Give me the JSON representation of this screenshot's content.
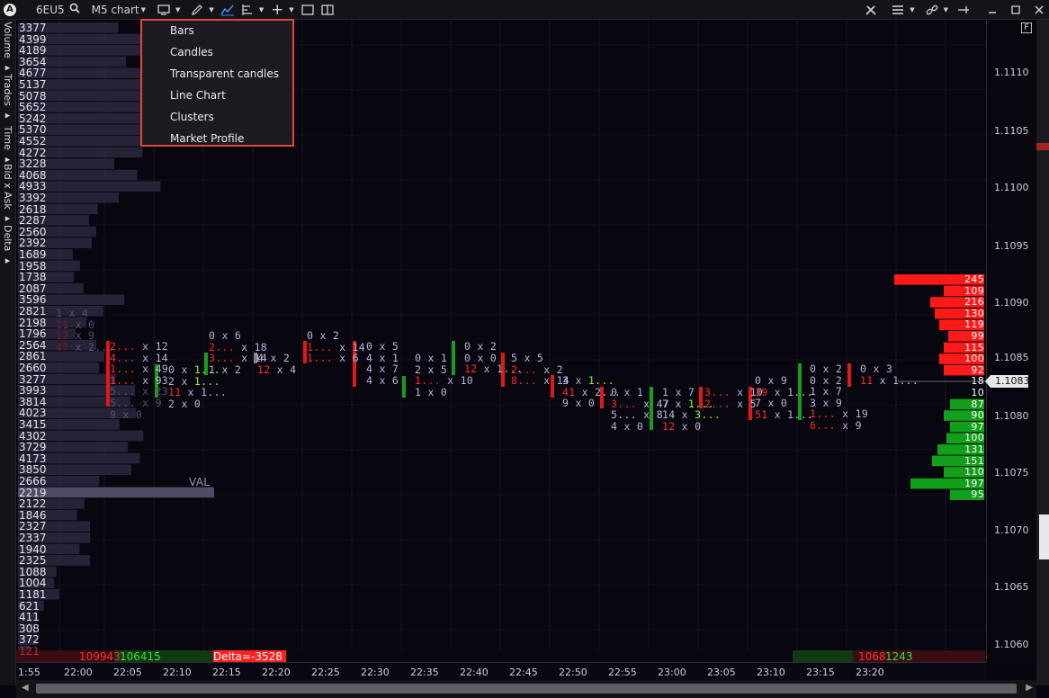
{
  "toolbar": {
    "symbol": "6EU5",
    "timeframe": "M5 chart"
  },
  "chart_type_menu": {
    "items": [
      "Bars",
      "Candles",
      "Transparent candles",
      "Line Chart",
      "Clusters",
      "Market Profile"
    ]
  },
  "side_tabs": [
    "Volume",
    "Trades",
    "Time",
    "Bid x Ask",
    "Delta"
  ],
  "volume_profile": {
    "labels": [
      "3377",
      "4399",
      "4189",
      "3654",
      "4677",
      "5137",
      "5078",
      "5652",
      "5242",
      "5370",
      "4552",
      "4272",
      "3228",
      "4068",
      "4933",
      "3392",
      "2618",
      "2287",
      "2560",
      "2392",
      "1689",
      "1958",
      "1738",
      "2087",
      "3596",
      "2821",
      "2198",
      "1796",
      "2564",
      "2861",
      "2660",
      "3277",
      "3993",
      "3814",
      "4023",
      "3415",
      "4302",
      "3729",
      "4173",
      "3850",
      "2666",
      "2219",
      "2122",
      "1846",
      "2327",
      "2337",
      "1940",
      "2325",
      "1088",
      "1004",
      "1181",
      "621",
      "411",
      "308",
      "372",
      "121"
    ],
    "val_label": "VAL"
  },
  "price_axis": {
    "labels": [
      "1.1110",
      "1.1105",
      "1.1100",
      "1.1095",
      "1.1090",
      "1.1085",
      "1.1080",
      "1.1075",
      "1.1070",
      "1.1065",
      "1.1060"
    ],
    "current": "1.1083",
    "badge": "F"
  },
  "time_axis": {
    "labels": [
      "1:55",
      "22:00",
      "22:05",
      "22:10",
      "22:15",
      "22:20",
      "22:25",
      "22:30",
      "22:35",
      "22:40",
      "22:45",
      "22:50",
      "22:55",
      "23:00",
      "23:05",
      "23:10",
      "23:15",
      "23:20"
    ]
  },
  "delta_profile": {
    "sell": [
      "245",
      "109",
      "216",
      "130",
      "119",
      "99",
      "115",
      "100",
      "92"
    ],
    "neutral": "18",
    "buy": [
      "10",
      "87",
      "90",
      "97",
      "100",
      "131",
      "151",
      "110",
      "197",
      "95"
    ]
  },
  "footer": {
    "sell_total": "109943",
    "buy_total": "106415",
    "delta": "Delta=-3528",
    "right_sell": "1068",
    "right_buy": "1243"
  },
  "clusters": [
    {
      "col": 0,
      "texts": [
        "1 x 4",
        "11 x 0",
        "12 x 9",
        "47 x 2..."
      ]
    },
    {
      "col": 1,
      "texts": [
        "2... x 12",
        "4... x 14",
        "1... x 49",
        "1... x 93",
        "5... x 23",
        "5... x 9",
        "9 x 0"
      ]
    },
    {
      "col": 2,
      "texts": [
        "0 x 1...",
        "2 x 1...",
        "11 x 1...",
        "2 x 0"
      ]
    },
    {
      "col": 3,
      "texts": [
        "0 x 6",
        "2... x 18",
        "3... x 14",
        "1 x 2"
      ]
    },
    {
      "col": 4,
      "texts": [
        "4 x 2",
        "12 x 4"
      ]
    },
    {
      "col": 5,
      "texts": [
        "0 x 2",
        "1... x 14",
        "1... x 6"
      ]
    },
    {
      "col": 6,
      "texts": [
        "0 x 5",
        "4 x 1",
        "4 x 7",
        "4 x 6"
      ]
    },
    {
      "col": 7,
      "texts": [
        "0 x 1",
        "2 x 5",
        "1... x 10",
        "1 x 0"
      ]
    },
    {
      "col": 8,
      "texts": [
        "0 x 2",
        "0 x 0",
        "12 x 1..."
      ]
    },
    {
      "col": 9,
      "texts": [
        "5 x 5",
        "2... x 2",
        "8... x 14"
      ]
    },
    {
      "col": 10,
      "texts": [
        "3 x 1...",
        "41 x 2...",
        "9 x 0"
      ]
    },
    {
      "col": 11,
      "texts": [
        "0 x 1",
        "3... x 47",
        "5... x 8",
        "4 x 0"
      ]
    },
    {
      "col": 12,
      "texts": [
        "1 x 7",
        "7 x 1...",
        "14 x 3...",
        "12 x 0"
      ]
    },
    {
      "col": 13,
      "texts": [
        "3... x 10",
        "2... x 5"
      ]
    },
    {
      "col": 14,
      "texts": [
        "0 x 9",
        "39 x 1...",
        "7 x 0",
        "51 x 1..."
      ]
    },
    {
      "col": 15,
      "texts": [
        "0 x 2",
        "0 x 2",
        "1 x 7",
        "3 x 9",
        "1... x 19",
        "6... x 9"
      ]
    },
    {
      "col": 16,
      "texts": [
        "0 x 3",
        "11 x 1..."
      ]
    }
  ]
}
